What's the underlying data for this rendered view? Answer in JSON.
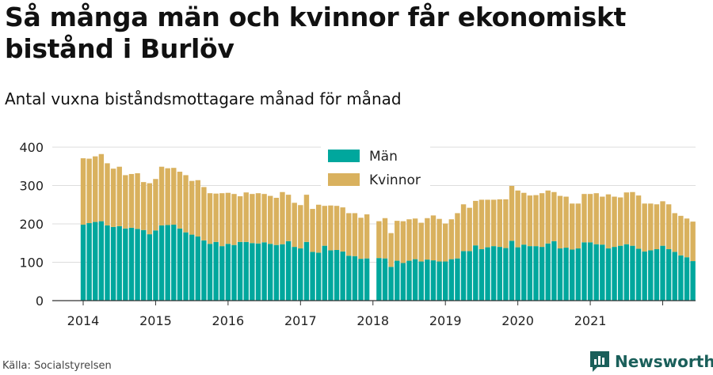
{
  "title": "Så många män och kvinnor får ekonomiskt bistånd i Burlöv",
  "subtitle": "Antal vuxna biståndsmottagare månad för månad",
  "source": "Källa: Socialstyrelsen",
  "brand": {
    "name": "Newsworthy",
    "logo_icon": "newsworthy-chart-logo-icon"
  },
  "colors": {
    "man": "#00a79d",
    "kvinnor": "#d9b15e",
    "grid": "#dddddd",
    "axis": "#333333",
    "brand": "#1a5f5a"
  },
  "chart_data": {
    "type": "bar",
    "stacked": true,
    "frequency": "monthly",
    "start_month": "2014-01",
    "year_labels": [
      "2014",
      "2015",
      "2016",
      "2017",
      "2018",
      "2019",
      "2020",
      "2021"
    ],
    "yticks": [
      0,
      100,
      200,
      300,
      400
    ],
    "ylim": [
      0,
      420
    ],
    "grid": true,
    "legend_position": "top-center",
    "series": [
      {
        "name": "Män",
        "color": "#00a79d",
        "values": [
          198,
          202,
          205,
          207,
          196,
          192,
          194,
          188,
          190,
          187,
          184,
          173,
          183,
          196,
          197,
          198,
          188,
          178,
          172,
          167,
          157,
          148,
          153,
          142,
          148,
          145,
          153,
          153,
          150,
          149,
          152,
          148,
          145,
          147,
          155,
          140,
          136,
          153,
          127,
          125,
          143,
          131,
          132,
          128,
          117,
          116,
          109,
          110,
          117,
          111,
          110,
          88,
          104,
          98,
          104,
          108,
          102,
          107,
          105,
          102,
          102,
          108,
          110,
          129,
          129,
          144,
          134,
          139,
          142,
          140,
          137,
          156,
          139,
          146,
          142,
          142,
          140,
          149,
          155,
          136,
          138,
          133,
          136,
          152,
          152,
          147,
          146,
          136,
          140,
          143,
          147,
          143,
          135,
          128,
          131,
          134,
          143,
          134,
          127,
          118,
          113,
          103
        ],
        "gaps": [
          48
        ]
      },
      {
        "name": "Kvinnor",
        "values": [
          173,
          168,
          171,
          175,
          162,
          152,
          155,
          139,
          140,
          145,
          125,
          133,
          134,
          153,
          148,
          148,
          148,
          149,
          140,
          147,
          139,
          132,
          126,
          138,
          133,
          133,
          119,
          129,
          128,
          131,
          126,
          125,
          123,
          136,
          121,
          115,
          113,
          123,
          112,
          125,
          104,
          117,
          115,
          115,
          111,
          112,
          107,
          115,
          100,
          96,
          105,
          88,
          104,
          109,
          108,
          106,
          101,
          108,
          117,
          111,
          99,
          104,
          118,
          122,
          113,
          116,
          129,
          124,
          121,
          124,
          127,
          143,
          148,
          135,
          132,
          133,
          140,
          138,
          128,
          137,
          133,
          120,
          117,
          126,
          126,
          133,
          125,
          141,
          131,
          126,
          135,
          140,
          139,
          125,
          122,
          117,
          116,
          117,
          101,
          103,
          101,
          103
        ],
        "color": "#d9b15e",
        "gaps": [
          48
        ]
      }
    ]
  }
}
